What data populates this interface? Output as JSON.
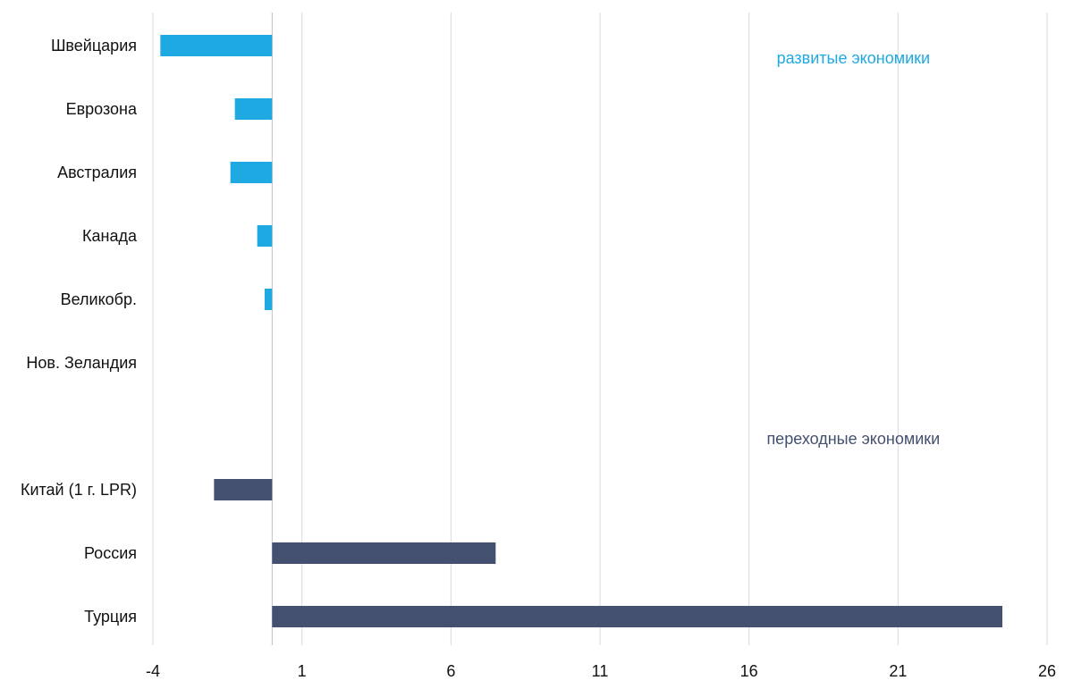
{
  "chart_data": {
    "type": "bar",
    "orientation": "horizontal",
    "title": "",
    "xlabel": "",
    "ylabel": "",
    "xlim": [
      -4,
      26
    ],
    "x_ticks": [
      -4,
      1,
      6,
      11,
      16,
      21,
      26
    ],
    "x_tick_labels": [
      "-4",
      "1",
      "6",
      "11",
      "16",
      "21",
      "26"
    ],
    "grid": true,
    "legend": "none",
    "categories": [
      "Швейцария",
      "Еврозона",
      "Австралия",
      "Канада",
      "Великобр.",
      "Нов. Зеландия",
      "",
      "Китай (1 г. LPR)",
      "Россия ",
      "Турция"
    ],
    "values": [
      -3.75,
      -1.25,
      -1.4,
      -0.5,
      -0.25,
      0,
      null,
      -1.95,
      7.5,
      24.5
    ],
    "groups": [
      "developed",
      "developed",
      "developed",
      "developed",
      "developed",
      "developed",
      null,
      "transition",
      "transition",
      "transition"
    ],
    "colors": {
      "developed": "#1ea9e3",
      "transition": "#43506f"
    },
    "annotations": [
      {
        "text": "развитые экономики",
        "group": "developed",
        "anchor_category": "Швейцария",
        "x": 19.5
      },
      {
        "text": "переходные экономики",
        "group": "transition",
        "anchor_category": "",
        "x": 19.5
      }
    ]
  }
}
